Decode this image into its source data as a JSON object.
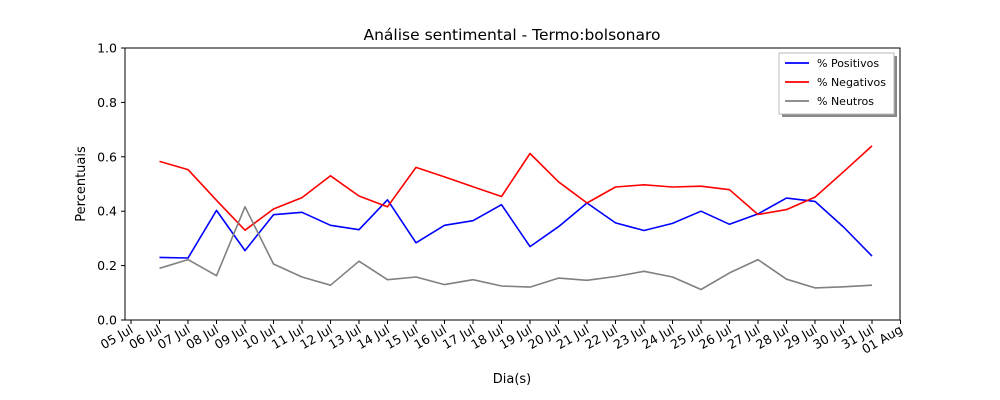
{
  "chart_data": {
    "type": "line",
    "title": "Análise sentimental - Termo:bolsonaro",
    "xlabel": "Dia(s)",
    "ylabel": "Percentuais",
    "ylim": [
      0,
      1
    ],
    "yticks": [
      "0.0",
      "0.2",
      "0.4",
      "0.6",
      "0.8",
      "1.0"
    ],
    "xticks": [
      "05 Jul",
      "06 Jul",
      "07 Jul",
      "08 Jul",
      "09 Jul",
      "10 Jul",
      "11 Jul",
      "12 Jul",
      "13 Jul",
      "14 Jul",
      "15 Jul",
      "16 Jul",
      "17 Jul",
      "18 Jul",
      "19 Jul",
      "20 Jul",
      "21 Jul",
      "22 Jul",
      "23 Jul",
      "24 Jul",
      "25 Jul",
      "26 Jul",
      "27 Jul",
      "28 Jul",
      "29 Jul",
      "30 Jul",
      "31 Jul",
      "01 Aug"
    ],
    "x": [
      "06 Jul",
      "07 Jul",
      "08 Jul",
      "09 Jul",
      "10 Jul",
      "11 Jul",
      "12 Jul",
      "13 Jul",
      "14 Jul",
      "15 Jul",
      "16 Jul",
      "17 Jul",
      "18 Jul",
      "19 Jul",
      "20 Jul",
      "21 Jul",
      "22 Jul",
      "23 Jul",
      "24 Jul",
      "25 Jul",
      "26 Jul",
      "27 Jul",
      "28 Jul",
      "29 Jul",
      "30 Jul",
      "31 Jul"
    ],
    "series": [
      {
        "name": "% Positivos",
        "color": "#0000ff",
        "values": [
          0.23,
          0.228,
          0.403,
          0.255,
          0.387,
          0.396,
          0.348,
          0.332,
          0.442,
          0.284,
          0.348,
          0.365,
          0.424,
          0.27,
          0.343,
          0.43,
          0.357,
          0.329,
          0.355,
          0.4,
          0.352,
          0.39,
          0.448,
          0.436,
          0.342,
          0.235
        ]
      },
      {
        "name": "% Negativos",
        "color": "#ff0000",
        "values": [
          0.583,
          0.553,
          0.44,
          0.33,
          0.408,
          0.45,
          0.53,
          0.456,
          0.416,
          0.561,
          0.526,
          0.49,
          0.454,
          0.612,
          0.508,
          0.43,
          0.489,
          0.497,
          0.489,
          0.492,
          0.479,
          0.388,
          0.406,
          0.452,
          0.545,
          0.64
        ]
      },
      {
        "name": "% Neutros",
        "color": "#808080",
        "values": [
          0.19,
          0.222,
          0.163,
          0.416,
          0.206,
          0.158,
          0.128,
          0.216,
          0.148,
          0.158,
          0.13,
          0.148,
          0.125,
          0.121,
          0.154,
          0.146,
          0.16,
          0.179,
          0.158,
          0.112,
          0.173,
          0.222,
          0.15,
          0.118,
          0.122,
          0.128
        ]
      }
    ],
    "legend": "top-right",
    "grid": false
  }
}
